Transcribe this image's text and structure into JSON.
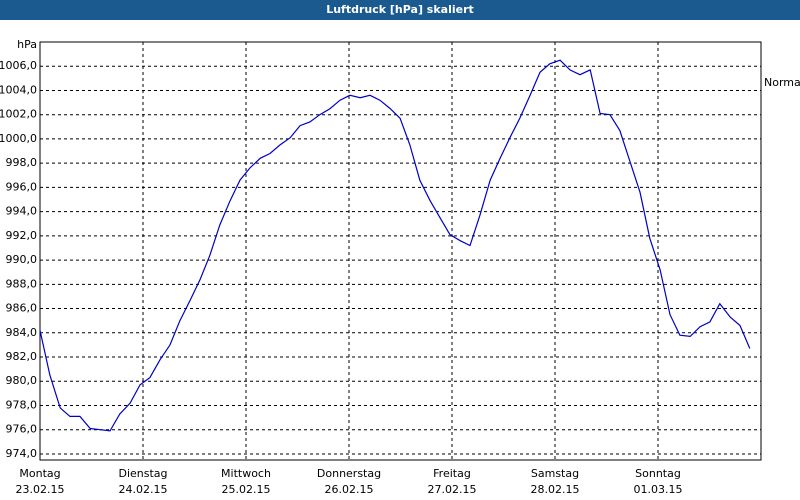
{
  "chart_data": {
    "type": "line",
    "title": "Luftdruck [hPa] skaliert",
    "y_label": "hPa",
    "xlim": [
      0,
      168
    ],
    "xticks": [
      {
        "value": 0,
        "label": "Montag",
        "date": "23.02.15"
      },
      {
        "value": 24,
        "label": "Dienstag",
        "date": "24.02.15"
      },
      {
        "value": 48,
        "label": "Mittwoch",
        "date": "25.02.15"
      },
      {
        "value": 72,
        "label": "Donnerstag",
        "date": "26.02.15"
      },
      {
        "value": 96,
        "label": "Freitag",
        "date": "27.02.15"
      },
      {
        "value": 120,
        "label": "Samstag",
        "date": "28.02.15"
      },
      {
        "value": 144,
        "label": "Sonntag",
        "date": "01.03.15"
      }
    ],
    "ylim": [
      973.5,
      1008
    ],
    "yticks": [
      {
        "value": 974,
        "label": "974,0"
      },
      {
        "value": 976,
        "label": "976,0"
      },
      {
        "value": 978,
        "label": "978,0"
      },
      {
        "value": 980,
        "label": "980,0"
      },
      {
        "value": 982,
        "label": "982,0"
      },
      {
        "value": 984,
        "label": "984,0"
      },
      {
        "value": 986,
        "label": "986,0"
      },
      {
        "value": 988,
        "label": "988,0"
      },
      {
        "value": 990,
        "label": "990,0"
      },
      {
        "value": 992,
        "label": "992,0"
      },
      {
        "value": 994,
        "label": "994,0"
      },
      {
        "value": 996,
        "label": "996,0"
      },
      {
        "value": 998,
        "label": "998,0"
      },
      {
        "value": 1000,
        "label": "1000,0"
      },
      {
        "value": 1002,
        "label": "1002,0"
      },
      {
        "value": 1004,
        "label": "1004,0"
      },
      {
        "value": 1006,
        "label": "1006,0"
      }
    ],
    "grid": true,
    "annotation": {
      "text": "Normal",
      "value": 1004.6
    },
    "x": [
      0,
      2.3,
      4.7,
      7.0,
      9.3,
      11.7,
      14.0,
      16.3,
      18.6,
      21.0,
      23.3,
      25.6,
      28.0,
      30.3,
      32.6,
      35.0,
      37.3,
      39.6,
      41.9,
      44.3,
      46.6,
      48.9,
      51.3,
      53.6,
      55.9,
      58.3,
      60.6,
      62.9,
      65.2,
      67.6,
      69.9,
      72.2,
      74.6,
      76.9,
      79.2,
      81.6,
      83.9,
      86.2,
      88.5,
      90.9,
      93.2,
      95.5,
      97.9,
      100.2,
      102.5,
      104.9,
      107.2,
      109.5,
      111.8,
      114.2,
      116.5,
      118.8,
      121.2,
      123.5,
      125.8,
      128.2,
      130.5,
      132.8,
      135.1,
      137.5,
      139.8,
      142.1,
      144.5,
      146.8,
      149.1,
      151.5,
      153.8,
      156.1,
      158.4,
      160.8,
      163.1,
      165.4
    ],
    "series": [
      {
        "color": "#0000c8",
        "values": [
          984.2,
          980.5,
          977.8,
          977.1,
          977.1,
          976.1,
          976.0,
          975.9,
          977.3,
          978.2,
          979.7,
          980.3,
          981.8,
          983.0,
          985.0,
          986.7,
          988.4,
          990.4,
          992.9,
          994.9,
          996.6,
          997.6,
          998.4,
          998.8,
          999.5,
          1000.1,
          1001.1,
          1001.4,
          1002.0,
          1002.5,
          1003.2,
          1003.6,
          1003.4,
          1003.6,
          1003.2,
          1002.5,
          1001.7,
          999.5,
          996.6,
          994.9,
          993.5,
          992.1,
          991.6,
          991.2,
          993.7,
          996.6,
          998.4,
          1000.1,
          1001.7,
          1003.6,
          1005.5,
          1006.2,
          1006.5,
          1005.7,
          1005.3,
          1005.7,
          1002.1,
          1002.0,
          1000.7,
          998.1,
          995.6,
          991.8,
          989.2,
          985.5,
          983.8,
          983.7,
          984.5,
          984.9,
          986.4,
          985.3,
          984.6,
          982.7
        ]
      }
    ]
  }
}
